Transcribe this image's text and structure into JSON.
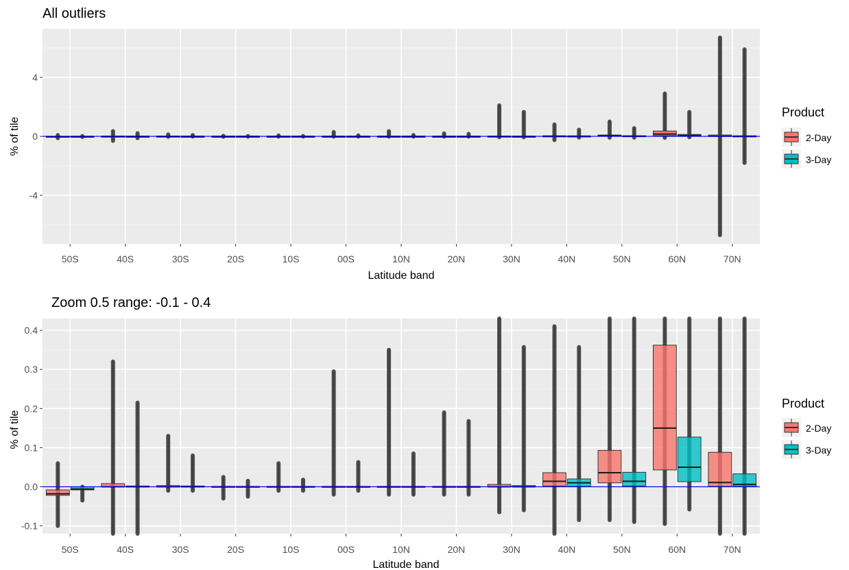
{
  "legend": {
    "title": "Product",
    "items": [
      {
        "label": "2-Day",
        "color": "#F8766D"
      },
      {
        "label": "3-Day",
        "color": "#00BFC4"
      }
    ]
  },
  "chart_data": [
    {
      "type": "boxplot",
      "title": "All outliers",
      "xlabel": "Latitude band",
      "ylabel": "% of tile",
      "categories": [
        "50S",
        "40S",
        "30S",
        "20S",
        "10S",
        "00S",
        "10N",
        "20N",
        "30N",
        "40N",
        "50N",
        "60N",
        "70N"
      ],
      "ylim": [
        -7.3,
        7.3
      ],
      "yticks": [
        -4,
        0,
        4
      ],
      "grid": true,
      "legend_position": "right",
      "reference_line": {
        "y": 0,
        "color": "#0000FF"
      },
      "series": [
        {
          "name": "2-Day",
          "boxes": [
            {
              "q1": -0.05,
              "median": -0.02,
              "q3": 0.0,
              "lo": -0.12,
              "hi": 0.08
            },
            {
              "q1": 0.0,
              "median": 0.0,
              "q3": 0.01,
              "lo": -0.3,
              "hi": 0.35
            },
            {
              "q1": 0.0,
              "median": 0.0,
              "q3": 0.01,
              "lo": -0.03,
              "hi": 0.13
            },
            {
              "q1": 0.0,
              "median": 0.0,
              "q3": 0.0,
              "lo": -0.03,
              "hi": 0.03
            },
            {
              "q1": 0.0,
              "median": 0.0,
              "q3": 0.0,
              "lo": -0.02,
              "hi": 0.06
            },
            {
              "q1": 0.0,
              "median": 0.0,
              "q3": 0.0,
              "lo": -0.02,
              "hi": 0.29
            },
            {
              "q1": 0.0,
              "median": 0.0,
              "q3": 0.0,
              "lo": -0.02,
              "hi": 0.35
            },
            {
              "q1": 0.0,
              "median": 0.0,
              "q3": 0.0,
              "lo": -0.02,
              "hi": 0.19
            },
            {
              "q1": 0.0,
              "median": 0.0,
              "q3": 0.01,
              "lo": -0.06,
              "hi": 2.1
            },
            {
              "q1": 0.0,
              "median": 0.01,
              "q3": 0.03,
              "lo": -0.25,
              "hi": 0.8
            },
            {
              "q1": 0.01,
              "median": 0.04,
              "q3": 0.09,
              "lo": -0.09,
              "hi": 1.0
            },
            {
              "q1": 0.04,
              "median": 0.15,
              "q3": 0.36,
              "lo": -0.1,
              "hi": 2.9
            },
            {
              "q1": 0.0,
              "median": 0.01,
              "q3": 0.09,
              "lo": -6.7,
              "hi": 6.7
            }
          ]
        },
        {
          "name": "3-Day",
          "boxes": [
            {
              "q1": -0.01,
              "median": -0.01,
              "q3": 0.0,
              "lo": -0.04,
              "hi": 0.02
            },
            {
              "q1": 0.0,
              "median": 0.0,
              "q3": 0.0,
              "lo": -0.12,
              "hi": 0.21
            },
            {
              "q1": 0.0,
              "median": 0.0,
              "q3": 0.0,
              "lo": -0.01,
              "hi": 0.08
            },
            {
              "q1": 0.0,
              "median": 0.0,
              "q3": 0.0,
              "lo": -0.02,
              "hi": 0.02
            },
            {
              "q1": 0.0,
              "median": 0.0,
              "q3": 0.0,
              "lo": -0.01,
              "hi": 0.02
            },
            {
              "q1": 0.0,
              "median": 0.0,
              "q3": 0.0,
              "lo": -0.01,
              "hi": 0.06
            },
            {
              "q1": 0.0,
              "median": 0.0,
              "q3": 0.0,
              "lo": -0.02,
              "hi": 0.08
            },
            {
              "q1": 0.0,
              "median": 0.0,
              "q3": 0.0,
              "lo": -0.02,
              "hi": 0.17
            },
            {
              "q1": 0.0,
              "median": 0.0,
              "q3": 0.0,
              "lo": -0.06,
              "hi": 1.65
            },
            {
              "q1": 0.0,
              "median": 0.01,
              "q3": 0.02,
              "lo": -0.08,
              "hi": 0.45
            },
            {
              "q1": 0.0,
              "median": 0.01,
              "q3": 0.04,
              "lo": -0.09,
              "hi": 0.55
            },
            {
              "q1": 0.01,
              "median": 0.05,
              "q3": 0.13,
              "lo": -0.06,
              "hi": 1.65
            },
            {
              "q1": 0.0,
              "median": 0.01,
              "q3": 0.03,
              "lo": -1.8,
              "hi": 5.9
            }
          ]
        }
      ]
    },
    {
      "type": "boxplot",
      "title": "Zoom 0.5 range: -0.1 - 0.4",
      "xlabel": "Latitude band",
      "ylabel": "% of tile",
      "categories": [
        "50S",
        "40S",
        "30S",
        "20S",
        "10S",
        "00S",
        "10N",
        "20N",
        "30N",
        "40N",
        "50N",
        "60N",
        "70N"
      ],
      "ylim": [
        -0.12,
        0.43
      ],
      "yticks": [
        -0.1,
        0.0,
        0.1,
        0.2,
        0.3,
        0.4
      ],
      "grid": true,
      "legend_position": "right",
      "reference_line": {
        "y": 0,
        "color": "#0000FF"
      },
      "series": [
        {
          "name": "2-Day",
          "boxes": [
            {
              "q1": -0.022,
              "median": -0.018,
              "q3": -0.008,
              "lo": -0.1,
              "hi": 0.06
            },
            {
              "q1": 0.0,
              "median": 0.0,
              "q3": 0.008,
              "lo": -0.12,
              "hi": 0.32
            },
            {
              "q1": 0.0,
              "median": 0.0,
              "q3": 0.003,
              "lo": -0.01,
              "hi": 0.13
            },
            {
              "q1": 0.0,
              "median": 0.0,
              "q3": 0.001,
              "lo": -0.03,
              "hi": 0.025
            },
            {
              "q1": 0.0,
              "median": 0.0,
              "q3": 0.001,
              "lo": -0.01,
              "hi": 0.06
            },
            {
              "q1": 0.0,
              "median": 0.0,
              "q3": 0.001,
              "lo": -0.02,
              "hi": 0.295
            },
            {
              "q1": 0.0,
              "median": 0.0,
              "q3": 0.001,
              "lo": -0.02,
              "hi": 0.35
            },
            {
              "q1": 0.0,
              "median": 0.0,
              "q3": 0.001,
              "lo": -0.02,
              "hi": 0.19
            },
            {
              "q1": 0.0,
              "median": 0.0,
              "q3": 0.006,
              "lo": -0.065,
              "hi": 0.43
            },
            {
              "q1": 0.002,
              "median": 0.014,
              "q3": 0.036,
              "lo": -0.12,
              "hi": 0.41
            },
            {
              "q1": 0.01,
              "median": 0.036,
              "q3": 0.093,
              "lo": -0.085,
              "hi": 0.43
            },
            {
              "q1": 0.043,
              "median": 0.15,
              "q3": 0.362,
              "lo": -0.095,
              "hi": 0.43
            },
            {
              "q1": 0.001,
              "median": 0.011,
              "q3": 0.088,
              "lo": -0.12,
              "hi": 0.43
            }
          ]
        },
        {
          "name": "3-Day",
          "boxes": [
            {
              "q1": -0.008,
              "median": -0.006,
              "q3": 0.0,
              "lo": -0.035,
              "hi": 0.0
            },
            {
              "q1": 0.0,
              "median": 0.0,
              "q3": 0.002,
              "lo": -0.12,
              "hi": 0.215
            },
            {
              "q1": 0.0,
              "median": 0.0,
              "q3": 0.002,
              "lo": -0.01,
              "hi": 0.08
            },
            {
              "q1": 0.0,
              "median": 0.0,
              "q3": 0.001,
              "lo": -0.025,
              "hi": 0.015
            },
            {
              "q1": 0.0,
              "median": 0.0,
              "q3": 0.001,
              "lo": -0.01,
              "hi": 0.018
            },
            {
              "q1": 0.0,
              "median": 0.0,
              "q3": 0.001,
              "lo": -0.01,
              "hi": 0.063
            },
            {
              "q1": 0.0,
              "median": 0.0,
              "q3": 0.001,
              "lo": -0.02,
              "hi": 0.085
            },
            {
              "q1": 0.0,
              "median": 0.0,
              "q3": 0.001,
              "lo": -0.02,
              "hi": 0.168
            },
            {
              "q1": 0.0,
              "median": 0.0,
              "q3": 0.003,
              "lo": -0.06,
              "hi": 0.357
            },
            {
              "q1": 0.001,
              "median": 0.01,
              "q3": 0.02,
              "lo": -0.085,
              "hi": 0.357
            },
            {
              "q1": 0.002,
              "median": 0.014,
              "q3": 0.037,
              "lo": -0.09,
              "hi": 0.43
            },
            {
              "q1": 0.013,
              "median": 0.05,
              "q3": 0.127,
              "lo": -0.058,
              "hi": 0.43
            },
            {
              "q1": 0.001,
              "median": 0.006,
              "q3": 0.033,
              "lo": -0.12,
              "hi": 0.43
            }
          ]
        }
      ]
    }
  ]
}
